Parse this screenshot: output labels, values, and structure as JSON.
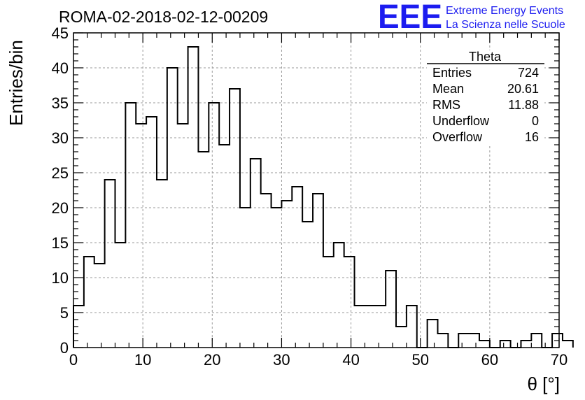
{
  "chart_data": {
    "type": "bar",
    "title": "ROMA-02-2018-02-12-00209",
    "xlabel": "θ [°]",
    "ylabel": "Entries/bin",
    "xlim": [
      0,
      70
    ],
    "ylim": [
      0,
      45
    ],
    "x_ticks": [
      0,
      10,
      20,
      30,
      40,
      50,
      60,
      70
    ],
    "y_ticks": [
      0,
      5,
      10,
      15,
      20,
      25,
      30,
      35,
      40,
      45
    ],
    "grid": true,
    "bin_width": 1.5,
    "values": [
      6,
      13,
      12,
      24,
      15,
      35,
      32,
      33,
      24,
      40,
      32,
      43,
      28,
      35,
      29,
      37,
      20,
      27,
      22,
      20,
      21,
      23,
      18,
      22,
      13,
      15,
      13,
      6,
      6,
      6,
      11,
      3,
      6,
      0,
      4,
      2,
      0,
      2,
      2,
      1,
      0,
      1,
      0,
      1,
      2,
      0,
      2,
      1
    ],
    "stats_box": {
      "title": "Theta",
      "placement": "top-right",
      "rows": [
        {
          "label": "Entries",
          "value": "724"
        },
        {
          "label": "Mean",
          "value": "20.61"
        },
        {
          "label": "RMS",
          "value": "11.88"
        },
        {
          "label": "Underflow",
          "value": "0"
        },
        {
          "label": "Overflow",
          "value": "16"
        }
      ]
    }
  },
  "logo": {
    "big": "EEE",
    "line1": "Extreme Energy Events",
    "line2": "La Scienza nelle Scuole",
    "color": "#1c1cf0"
  }
}
